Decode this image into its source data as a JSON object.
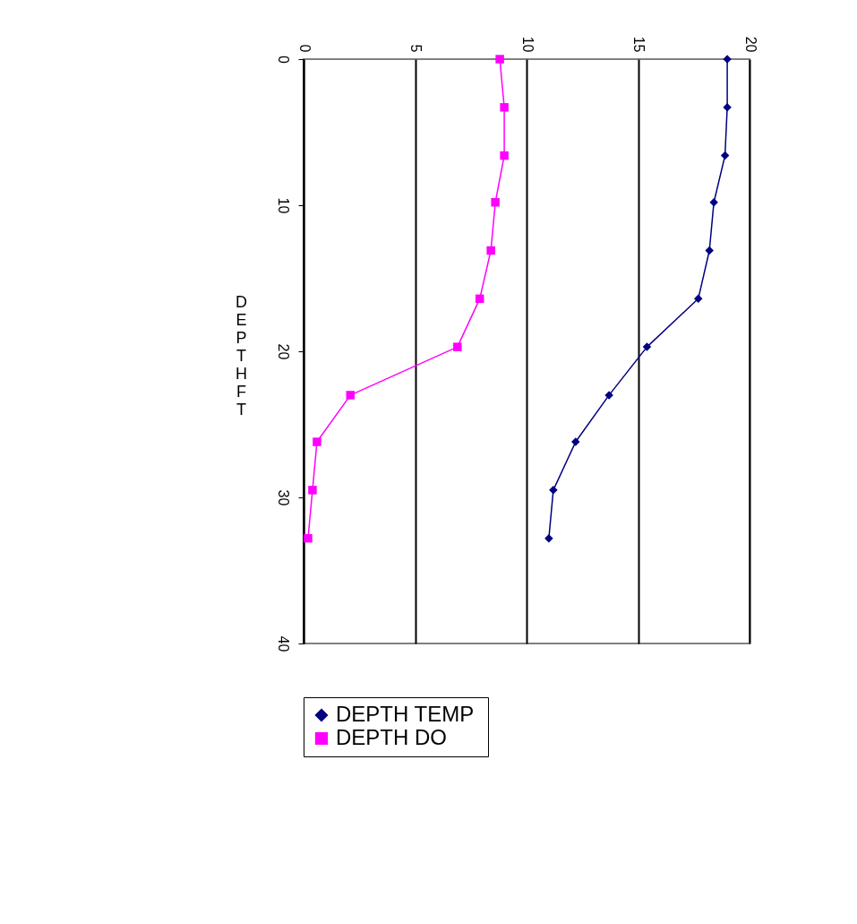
{
  "chart_data": {
    "type": "line",
    "ylabel": "DEPTH  FT",
    "series": [
      {
        "name": "DEPTH  TEMP",
        "color": "#000080",
        "marker": "diamond",
        "x": [
          19.0,
          19.0,
          18.9,
          18.4,
          18.2,
          17.7,
          15.4,
          13.7,
          12.2,
          11.2,
          11.0
        ],
        "values": [
          0,
          3.3,
          6.6,
          9.8,
          13.1,
          16.4,
          19.7,
          23.0,
          26.2,
          29.5,
          32.8
        ]
      },
      {
        "name": "DEPTH  DO",
        "color": "#ff00ff",
        "marker": "square",
        "x": [
          8.8,
          9.0,
          9.0,
          8.6,
          8.4,
          7.9,
          6.9,
          2.1,
          0.6,
          0.4,
          0.2
        ],
        "values": [
          0,
          3.3,
          6.6,
          9.8,
          13.1,
          16.4,
          19.7,
          23.0,
          26.2,
          29.5,
          32.8
        ]
      }
    ],
    "xlim": [
      0,
      20
    ],
    "xticks": [
      0,
      5,
      10,
      15,
      20
    ],
    "ylim": [
      40,
      0
    ],
    "yticks": [
      0,
      10,
      20,
      30,
      40
    ],
    "grid": "x",
    "legend": "bottom",
    "line_style": "solid"
  }
}
